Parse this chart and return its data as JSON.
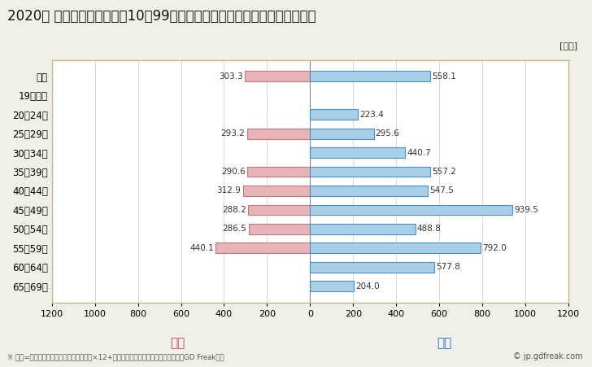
{
  "title": "2020年 民間企業（従業者数10～99人）フルタイム労働者の男女別平均年収",
  "unit_label": "[万円]",
  "categories": [
    "全体",
    "19歳以下",
    "20〜24歳",
    "25〜29歳",
    "30〜34歳",
    "35〜39歳",
    "40〜44歳",
    "45〜49歳",
    "50〜54歳",
    "55〜59歳",
    "60〜64歳",
    "65〜69歳"
  ],
  "female_values": [
    303.3,
    0,
    0,
    293.2,
    0,
    290.6,
    312.9,
    288.2,
    286.5,
    440.1,
    0,
    0
  ],
  "male_values": [
    558.1,
    0,
    223.4,
    295.6,
    440.7,
    557.2,
    547.5,
    939.5,
    488.8,
    792.0,
    577.8,
    204.0
  ],
  "female_color": "#e8b4b8",
  "female_edge_color": "#c07878",
  "male_color": "#a8cfe8",
  "male_edge_color": "#4a90c4",
  "female_label": "女性",
  "male_label": "男性",
  "female_label_color": "#cc4444",
  "male_label_color": "#2266cc",
  "xlim": [
    -1200,
    1200
  ],
  "xticks": [
    -1200,
    -1000,
    -800,
    -600,
    -400,
    -200,
    0,
    200,
    400,
    600,
    800,
    1000,
    1200
  ],
  "xtick_labels": [
    "1200",
    "1000",
    "800",
    "600",
    "400",
    "200",
    "0",
    "200",
    "400",
    "600",
    "800",
    "1000",
    "1200"
  ],
  "background_color": "#f0f0e8",
  "plot_bg_color": "#ffffff",
  "grid_color": "#cccccc",
  "footer_text": "※ 年収=「きまって支給する現金給与額」×12+「年間賞与その他特別給与額」としてGD Freak推計",
  "copyright_text": "© jp.gdfreak.com",
  "title_fontsize": 12,
  "bar_height": 0.55
}
